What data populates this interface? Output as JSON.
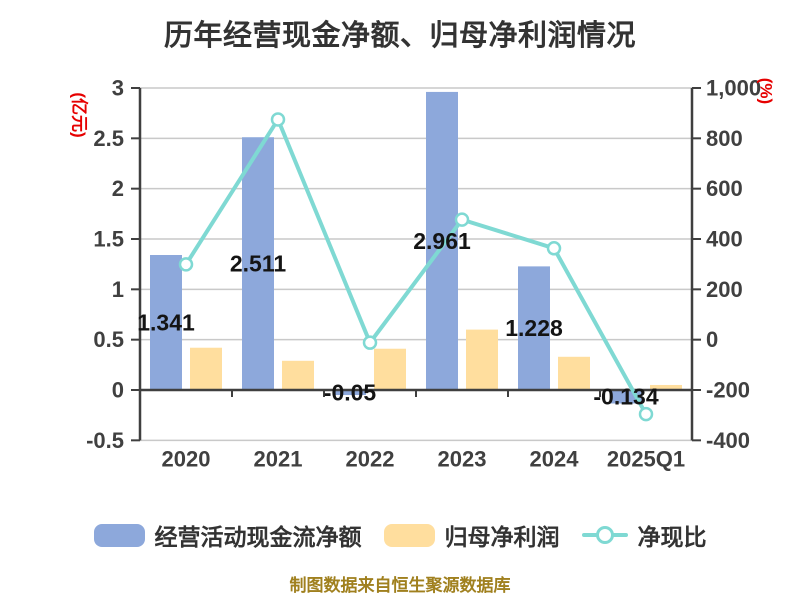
{
  "title": "历年经营现金净额、归母净利润情况",
  "footer_note": "制图数据来自恒生聚源数据库",
  "colors": {
    "cashflow_bar": "#8DA8DB",
    "profit_bar": "#FFDE9E",
    "ratio_line": "#7FD9D3",
    "marker_fill": "#FFFFFF",
    "grid": "#C9C9C9",
    "axis": "#3F3F3F",
    "tick_text": "#404040",
    "data_label_text": "#141414",
    "axis_unit_text": "#E60000",
    "title_text": "#333333",
    "footer_text": "#A0801E",
    "background": "#FFFFFF"
  },
  "chart_data": {
    "type": "bar+line",
    "categories": [
      "2020",
      "2021",
      "2022",
      "2023",
      "2024",
      "2025Q1"
    ],
    "series": [
      {
        "name": "经营活动现金流净额",
        "type": "bar",
        "axis": "left",
        "values": [
          1.341,
          2.511,
          -0.05,
          2.961,
          1.228,
          -0.134
        ],
        "data_labels": [
          "1.341",
          "2.511",
          "-0.05",
          "2.961",
          "1.228",
          "-0.134"
        ]
      },
      {
        "name": "归母净利润",
        "type": "bar",
        "axis": "left",
        "values": [
          0.42,
          0.29,
          0.41,
          0.6,
          0.33,
          0.05
        ],
        "approx": true
      },
      {
        "name": "净现比",
        "type": "line",
        "axis": "right",
        "values": [
          299,
          875,
          -12,
          477,
          363,
          -296
        ],
        "approx": true
      }
    ],
    "y_axis_left": {
      "unit_label": "(亿元)",
      "min": -0.5,
      "max": 3,
      "tick_values": [
        3,
        2.5,
        2,
        1.5,
        1,
        0.5,
        0,
        -0.5
      ],
      "tick_labels": [
        "3",
        "2.5",
        "2",
        "1.5",
        "1",
        "0.5",
        "0",
        "-0.5"
      ]
    },
    "y_axis_right": {
      "unit_label": "(%)",
      "min": -400,
      "max": 1000,
      "tick_values": [
        1000,
        800,
        600,
        400,
        200,
        0,
        -200,
        -400
      ],
      "tick_labels": [
        "1,000",
        "800",
        "600",
        "400",
        "200",
        "0",
        "-200",
        "-400"
      ]
    },
    "grid": true,
    "legend_position": "bottom"
  }
}
